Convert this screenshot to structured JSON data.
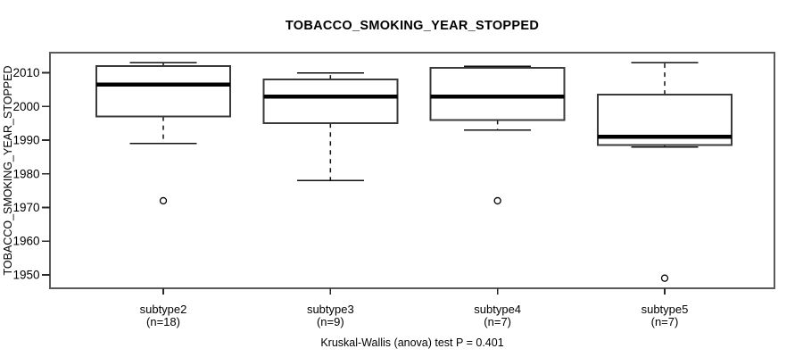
{
  "title": "TOBACCO_SMOKING_YEAR_STOPPED",
  "y_axis_label": "TOBACCO_SMOKING_YEAR_STOPPED",
  "footer": "Kruskal-Wallis (anova) test P = 0.401",
  "colors": {
    "background": "#ffffff",
    "plot_border": "#5a5a5a",
    "box_border": "#3a3a3a",
    "median": "#000000",
    "whisker": "#111111",
    "tick": "#2a2a2a",
    "text": "#000000"
  },
  "chart_data": {
    "type": "boxplot",
    "title": "TOBACCO_SMOKING_YEAR_STOPPED",
    "ylabel": "TOBACCO_SMOKING_YEAR_STOPPED",
    "annotation": "Kruskal-Wallis (anova) test P = 0.401",
    "ylim": [
      1946,
      2016
    ],
    "y_ticks": [
      1950,
      1960,
      1970,
      1980,
      1990,
      2000,
      2010
    ],
    "grid": false,
    "legend": "none",
    "categories": [
      {
        "label": "subtype2",
        "sublabel": "(n=18)",
        "n": 18,
        "whisker_low": 1989,
        "q1": 1997,
        "median": 2006.5,
        "q3": 2012,
        "whisker_high": 2013,
        "outliers": [
          1972
        ]
      },
      {
        "label": "subtype3",
        "sublabel": "(n=9)",
        "n": 9,
        "whisker_low": 1978,
        "q1": 1995,
        "median": 2003,
        "q3": 2008,
        "whisker_high": 2010,
        "outliers": []
      },
      {
        "label": "subtype4",
        "sublabel": "(n=7)",
        "n": 7,
        "whisker_low": 1993,
        "q1": 1996,
        "median": 2003,
        "q3": 2011.5,
        "whisker_high": 2012,
        "outliers": [
          1972
        ]
      },
      {
        "label": "subtype5",
        "sublabel": "(n=7)",
        "n": 7,
        "whisker_low": 1988,
        "q1": 1988.5,
        "median": 1991,
        "q3": 2003.5,
        "whisker_high": 2013,
        "outliers": [
          1949
        ]
      }
    ]
  }
}
